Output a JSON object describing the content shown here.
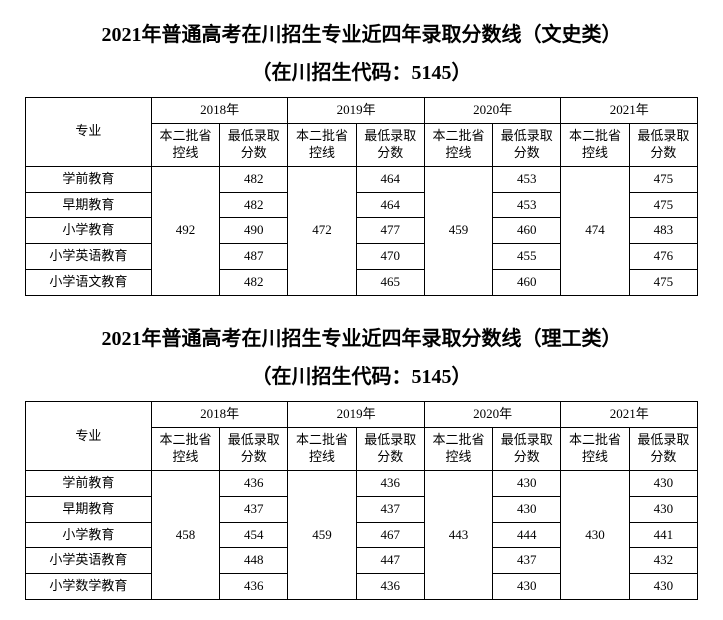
{
  "table1": {
    "title": "2021年普通高考在川招生专业近四年录取分数线（文史类）",
    "subtitle": "（在川招生代码：5145）",
    "header_major": "专业",
    "years": [
      "2018年",
      "2019年",
      "2020年",
      "2021年"
    ],
    "sub_headers": [
      "本二批省控线",
      "最低录取分数"
    ],
    "control_lines": [
      "492",
      "472",
      "459",
      "474"
    ],
    "rows": [
      {
        "major": "学前教育",
        "scores": [
          "482",
          "464",
          "453",
          "475"
        ]
      },
      {
        "major": "早期教育",
        "scores": [
          "482",
          "464",
          "453",
          "475"
        ]
      },
      {
        "major": "小学教育",
        "scores": [
          "490",
          "477",
          "460",
          "483"
        ]
      },
      {
        "major": "小学英语教育",
        "scores": [
          "487",
          "470",
          "455",
          "476"
        ]
      },
      {
        "major": "小学语文教育",
        "scores": [
          "482",
          "465",
          "460",
          "475"
        ]
      }
    ]
  },
  "table2": {
    "title": "2021年普通高考在川招生专业近四年录取分数线（理工类）",
    "subtitle": "（在川招生代码：5145）",
    "header_major": "专业",
    "years": [
      "2018年",
      "2019年",
      "2020年",
      "2021年"
    ],
    "sub_headers": [
      "本二批省控线",
      "最低录取分数"
    ],
    "control_lines": [
      "458",
      "459",
      "443",
      "430"
    ],
    "rows": [
      {
        "major": "学前教育",
        "scores": [
          "436",
          "436",
          "430",
          "430"
        ]
      },
      {
        "major": "早期教育",
        "scores": [
          "437",
          "437",
          "430",
          "430"
        ]
      },
      {
        "major": "小学教育",
        "scores": [
          "454",
          "467",
          "444",
          "441"
        ]
      },
      {
        "major": "小学英语教育",
        "scores": [
          "448",
          "447",
          "437",
          "432"
        ]
      },
      {
        "major": "小学数学教育",
        "scores": [
          "436",
          "436",
          "430",
          "430"
        ]
      }
    ]
  }
}
